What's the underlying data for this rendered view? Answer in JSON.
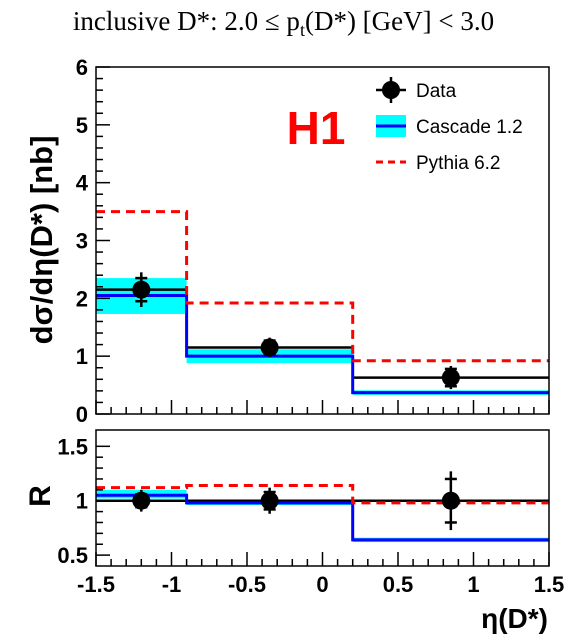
{
  "title": {
    "pre": "inclusive D*: 2.0 ≤ p",
    "sub": "t",
    "post": "(D*) [GeV] < 3.0"
  },
  "h1_label": "H1",
  "colors": {
    "data": "#000000",
    "cascade_line": "#0000ff",
    "cascade_band": "#00ffff",
    "pythia": "#ff0000",
    "h1": "#ff0000"
  },
  "chart_data": [
    {
      "type": "histogram",
      "panel": "top",
      "ylabel": "dσ/dη(D*) [nb]",
      "xlim": [
        -1.5,
        1.5
      ],
      "ylim": [
        0,
        6
      ],
      "yticks": [
        "0",
        "1",
        "2",
        "3",
        "4",
        "5",
        "6"
      ],
      "bin_edges": [
        -1.5,
        -0.9,
        0.2,
        1.5
      ],
      "legend": {
        "position": "top-right",
        "entries": [
          "Data",
          "Cascade 1.2",
          "Pythia 6.2"
        ]
      },
      "series": [
        {
          "name": "Data",
          "kind": "points",
          "x": [
            -1.2,
            -0.35,
            0.85
          ],
          "y": [
            2.15,
            1.15,
            0.63
          ],
          "err_lo": [
            0.3,
            0.17,
            0.2
          ],
          "err_hi": [
            0.3,
            0.17,
            0.2
          ],
          "stat_err": [
            0.2,
            0.12,
            0.15
          ],
          "xbin_lines": [
            2.15,
            1.15,
            0.63
          ]
        },
        {
          "name": "Cascade 1.2",
          "kind": "step_band",
          "values": [
            2.05,
            1.0,
            0.37
          ],
          "band_lo": [
            1.73,
            0.88,
            0.33
          ],
          "band_hi": [
            2.35,
            1.12,
            0.41
          ]
        },
        {
          "name": "Pythia 6.2",
          "kind": "step_dashed",
          "values": [
            3.5,
            1.92,
            0.92
          ]
        }
      ]
    },
    {
      "type": "histogram",
      "panel": "bottom",
      "ylabel": "R",
      "xlabel": "η(D*)",
      "xlim": [
        -1.5,
        1.5
      ],
      "ylim": [
        0.4,
        1.65
      ],
      "yticks": [
        "0.5",
        "1",
        "1.5"
      ],
      "xticks": [
        "-1.5",
        "-1",
        "-0.5",
        "0",
        "0.5",
        "1",
        "1.5"
      ],
      "bin_edges": [
        -1.5,
        -0.9,
        0.2,
        1.5
      ],
      "series": [
        {
          "name": "Data",
          "kind": "points",
          "x": [
            -1.2,
            -0.35,
            0.85
          ],
          "y": [
            1.0,
            1.0,
            1.0
          ],
          "err_lo": [
            0.1,
            0.12,
            0.27
          ],
          "err_hi": [
            0.1,
            0.12,
            0.27
          ],
          "stat_err": [
            0.06,
            0.08,
            0.2
          ]
        },
        {
          "name": "Cascade 1.2",
          "kind": "step_band",
          "values": [
            1.05,
            0.98,
            0.64
          ],
          "band_lo": [
            1.02,
            0.96,
            0.62
          ],
          "band_hi": [
            1.1,
            1.0,
            0.66
          ]
        },
        {
          "name": "Pythia 6.2",
          "kind": "step_dashed",
          "values": [
            1.12,
            1.14,
            0.98
          ]
        }
      ]
    }
  ]
}
